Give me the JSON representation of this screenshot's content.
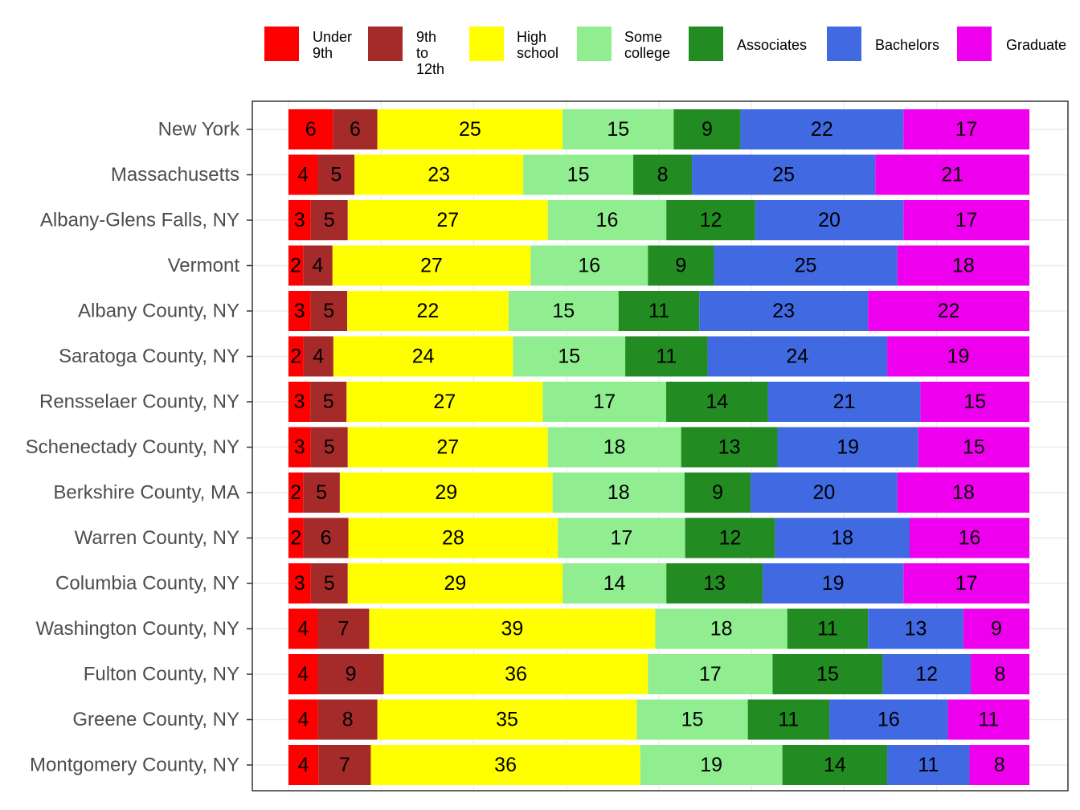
{
  "chart_data": {
    "type": "bar",
    "orientation": "horizontal",
    "stacked": true,
    "normalized": true,
    "title": "",
    "xlabel": "",
    "ylabel": "",
    "xlim": [
      0,
      100
    ],
    "grid": true,
    "legend_position": "top",
    "categories": [
      "New York",
      "Massachusetts",
      "Albany-Glens Falls, NY",
      "Vermont",
      "Albany County, NY",
      "Saratoga County, NY",
      "Rensselaer County, NY",
      "Schenectady County, NY",
      "Berkshire County, MA",
      "Warren County, NY",
      "Columbia County, NY",
      "Washington County, NY",
      "Fulton County, NY",
      "Greene County, NY",
      "Montgomery County, NY"
    ],
    "series": [
      {
        "name": "Under\n9th",
        "color": "#ff0000",
        "values": [
          6,
          4,
          3,
          2,
          3,
          2,
          3,
          3,
          2,
          2,
          3,
          4,
          4,
          4,
          4
        ]
      },
      {
        "name": "9th to\n12th",
        "color": "#a52a2a",
        "values": [
          6,
          5,
          5,
          4,
          5,
          4,
          5,
          5,
          5,
          6,
          5,
          7,
          9,
          8,
          7
        ]
      },
      {
        "name": "High\nschool",
        "color": "#ffff00",
        "values": [
          25,
          23,
          27,
          27,
          22,
          24,
          27,
          27,
          29,
          28,
          29,
          39,
          36,
          35,
          36
        ]
      },
      {
        "name": "Some\ncollege",
        "color": "#90ee90",
        "values": [
          15,
          15,
          16,
          16,
          15,
          15,
          17,
          18,
          18,
          17,
          14,
          18,
          17,
          15,
          19
        ]
      },
      {
        "name": "Associates",
        "color": "#228b22",
        "values": [
          9,
          8,
          12,
          9,
          11,
          11,
          14,
          13,
          9,
          12,
          13,
          11,
          15,
          11,
          14
        ]
      },
      {
        "name": "Bachelors",
        "color": "#4169e1",
        "values": [
          22,
          25,
          20,
          25,
          23,
          24,
          21,
          19,
          20,
          18,
          19,
          13,
          12,
          16,
          11
        ]
      },
      {
        "name": "Graduate",
        "color": "#ee00ee",
        "values": [
          17,
          21,
          17,
          18,
          22,
          19,
          15,
          15,
          18,
          16,
          17,
          9,
          8,
          11,
          8
        ]
      }
    ]
  }
}
